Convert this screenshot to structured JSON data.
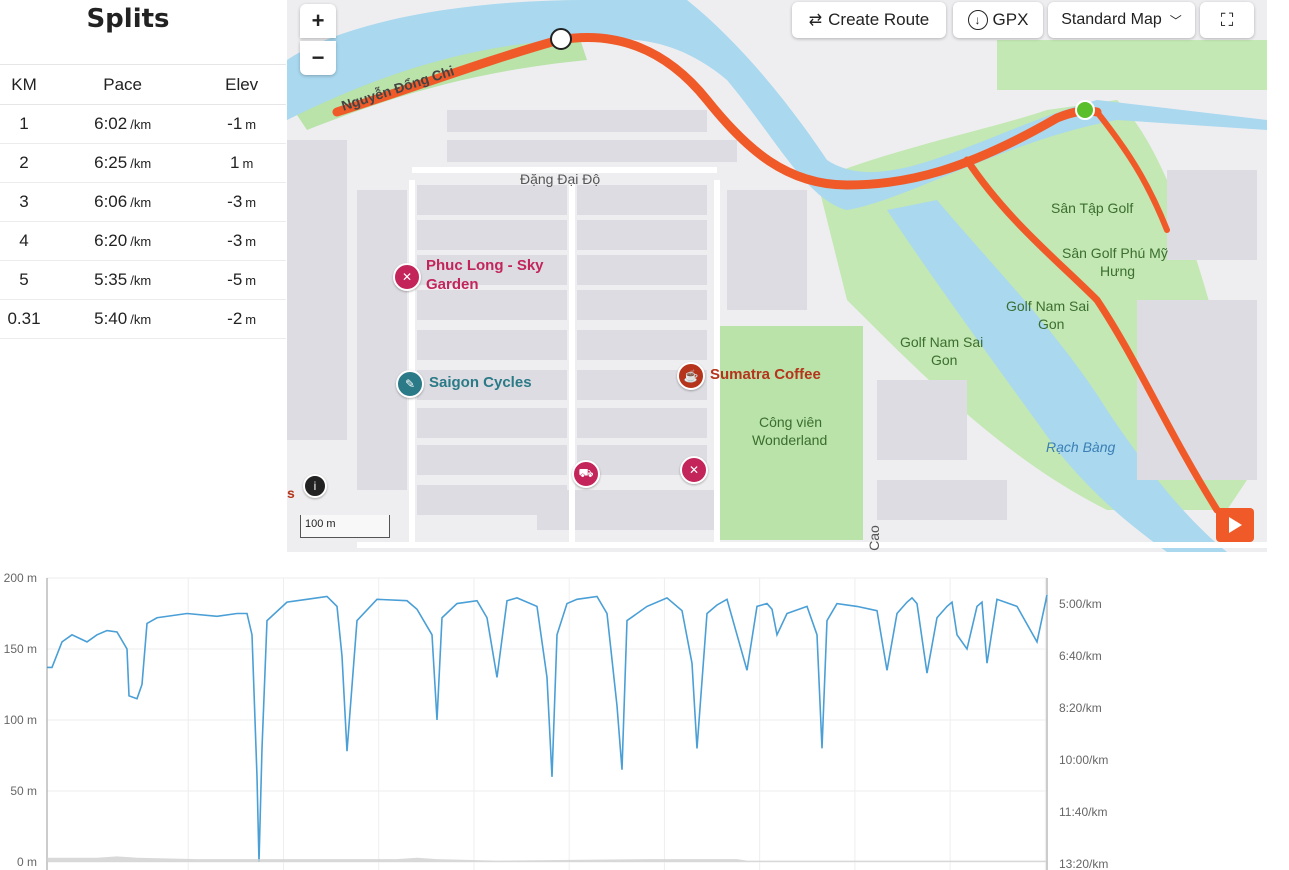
{
  "splits": {
    "title": "Splits",
    "headers": [
      "KM",
      "Pace",
      "Elev"
    ],
    "rows": [
      {
        "km": "1",
        "pace": "6:02",
        "pace_unit": "/km",
        "elev": "-1",
        "elev_unit": "m"
      },
      {
        "km": "2",
        "pace": "6:25",
        "pace_unit": "/km",
        "elev": "1",
        "elev_unit": "m"
      },
      {
        "km": "3",
        "pace": "6:06",
        "pace_unit": "/km",
        "elev": "-3",
        "elev_unit": "m"
      },
      {
        "km": "4",
        "pace": "6:20",
        "pace_unit": "/km",
        "elev": "-3",
        "elev_unit": "m"
      },
      {
        "km": "5",
        "pace": "5:35",
        "pace_unit": "/km",
        "elev": "-5",
        "elev_unit": "m"
      },
      {
        "km": "0.31",
        "pace": "5:40",
        "pace_unit": "/km",
        "elev": "-2",
        "elev_unit": "m"
      }
    ]
  },
  "map": {
    "zoom_in": "+",
    "zoom_out": "−",
    "create_route": "Create Route",
    "gpx": "GPX",
    "map_type": "Standard Map",
    "scale": "100 m",
    "left_edge_text": "s",
    "labels": {
      "street1": "Nguyễn Đổng Chi",
      "street2": "Đặng Đại Độ",
      "golf1": "Sân Tập Golf",
      "golf2a": "Sân Golf Phú Mỹ",
      "golf2b": "Hưng",
      "golf3a": "Golf Nam Sai",
      "golf3b": "Gon",
      "golf4a": "Golf Nam Sai",
      "golf4b": "Gon",
      "canal": "Rạch Bàng",
      "park1": "Công viên",
      "park2": "Wonderland",
      "road": "Cao"
    },
    "pois": {
      "phuc_long_a": "Phuc Long - Sky",
      "phuc_long_b": "Garden",
      "saigon_cycles": "Saigon Cycles",
      "sumatra": "Sumatra Coffee"
    },
    "colors": {
      "route": "#f05a28",
      "water": "#a9d8ef",
      "park": "#b9e3a9",
      "food_pin": "#c3245a",
      "cycles_pin": "#2b7a87",
      "coffee_pin": "#b5341b"
    }
  },
  "chart_data": {
    "type": "line",
    "y_left_ticks": [
      "200 m",
      "150 m",
      "100 m",
      "50 m",
      "0 m"
    ],
    "y_right_ticks": [
      "5:00/km",
      "6:40/km",
      "8:20/km",
      "10:00/km",
      "11:40/km",
      "13:20/km"
    ],
    "ylim_left": [
      0,
      200
    ],
    "ylim_right_pace_s_per_km": [
      300,
      800
    ],
    "grid": true,
    "series": [
      {
        "color": "#4a9fd6",
        "x_frac": [
          0,
          0.005,
          0.015,
          0.025,
          0.04,
          0.05,
          0.06,
          0.07,
          0.08,
          0.082,
          0.09,
          0.095,
          0.1,
          0.11,
          0.14,
          0.17,
          0.19,
          0.2,
          0.205,
          0.21,
          0.212,
          0.215,
          0.22,
          0.24,
          0.26,
          0.28,
          0.29,
          0.295,
          0.3,
          0.31,
          0.33,
          0.36,
          0.37,
          0.385,
          0.39,
          0.395,
          0.41,
          0.43,
          0.44,
          0.45,
          0.46,
          0.47,
          0.49,
          0.5,
          0.505,
          0.51,
          0.52,
          0.53,
          0.55,
          0.56,
          0.57,
          0.575,
          0.58,
          0.6,
          0.62,
          0.635,
          0.645,
          0.65,
          0.66,
          0.67,
          0.68,
          0.69,
          0.7,
          0.71,
          0.72,
          0.725,
          0.73,
          0.74,
          0.76,
          0.77,
          0.775,
          0.78,
          0.79,
          0.81,
          0.83,
          0.84,
          0.85,
          0.86,
          0.865,
          0.87,
          0.88,
          0.89,
          0.9,
          0.905,
          0.91,
          0.92,
          0.93,
          0.935,
          0.94,
          0.95,
          0.97,
          0.99,
          1.0
        ],
        "y": [
          137,
          137,
          155,
          160,
          155,
          160,
          163,
          162,
          150,
          117,
          115,
          125,
          168,
          172,
          175,
          173,
          175,
          175,
          160,
          60,
          0,
          80,
          170,
          183,
          185,
          187,
          180,
          145,
          78,
          170,
          185,
          184,
          178,
          160,
          100,
          172,
          182,
          184,
          172,
          130,
          184,
          186,
          180,
          130,
          60,
          160,
          182,
          185,
          187,
          175,
          110,
          65,
          170,
          180,
          186,
          177,
          140,
          80,
          175,
          181,
          185,
          160,
          135,
          180,
          182,
          178,
          160,
          175,
          180,
          160,
          80,
          170,
          182,
          180,
          177,
          135,
          175,
          183,
          186,
          182,
          133,
          172,
          180,
          183,
          160,
          150,
          180,
          183,
          140,
          185,
          180,
          155,
          188
        ]
      },
      {
        "color": "#cfcfcf",
        "x_frac": [
          0,
          0.05,
          0.07,
          0.09,
          0.15,
          0.2,
          0.3,
          0.35,
          0.37,
          0.39,
          0.45,
          0.6,
          0.69,
          0.7,
          1.0
        ],
        "y": [
          3,
          3,
          4,
          3,
          2,
          2,
          2,
          2,
          3,
          2,
          1,
          2,
          2,
          1,
          1
        ]
      }
    ]
  }
}
